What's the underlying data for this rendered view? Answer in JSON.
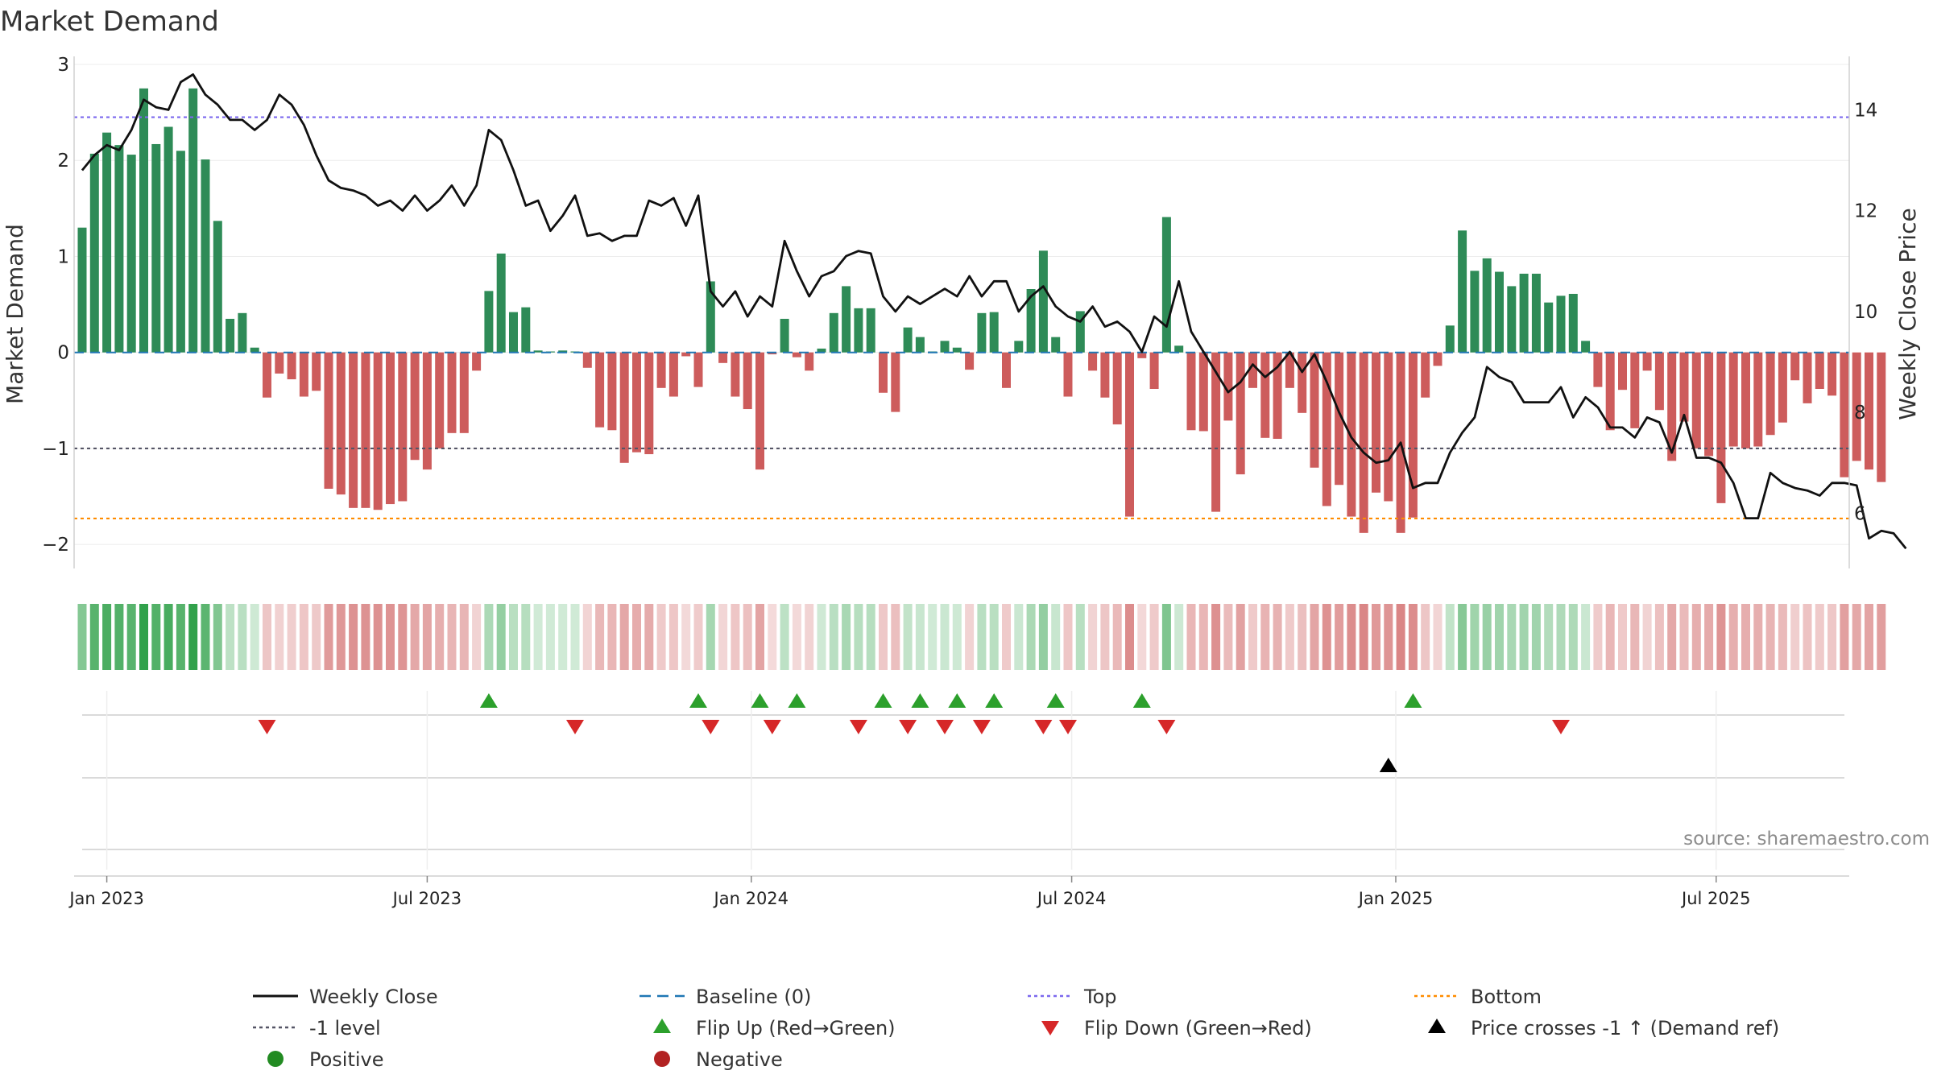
{
  "chart_data": {
    "type": "bar",
    "title": "Market Demand",
    "ylabel": "Market Demand",
    "y2label": "Weekly Close Price",
    "ylim": [
      -2.2,
      3.0
    ],
    "y2lim": [
      5.0,
      14.9
    ],
    "yticks": [
      3,
      2,
      1,
      0,
      -1,
      -2
    ],
    "yticklabels": [
      "3",
      "2",
      "1",
      "0",
      "−1",
      "−2"
    ],
    "y2ticks": [
      14,
      12,
      10,
      8,
      6
    ],
    "y2ticklabels": [
      "14",
      "12",
      "10",
      "8",
      "6"
    ],
    "xticks": [
      {
        "label": "Jan 2023",
        "week": 2
      },
      {
        "label": "Jul 2023",
        "week": 28
      },
      {
        "label": "Jan 2024",
        "week": 54.3
      },
      {
        "label": "Jul 2024",
        "week": 80.3
      },
      {
        "label": "Jan 2025",
        "week": 106.6
      },
      {
        "label": "Jul 2025",
        "week": 132.6
      }
    ],
    "reference_lines": {
      "baseline": 0,
      "top": 2.45,
      "minus_one_level": -1,
      "bottom": -1.73
    },
    "demand_values": [
      1.3,
      2.07,
      2.29,
      2.16,
      2.06,
      2.75,
      2.17,
      2.35,
      2.1,
      2.75,
      2.01,
      1.37,
      0.35,
      0.41,
      0.05,
      -0.47,
      -0.22,
      -0.28,
      -0.46,
      -0.4,
      -1.42,
      -1.48,
      -1.62,
      -1.62,
      -1.64,
      -1.58,
      -1.55,
      -1.12,
      -1.22,
      -1.0,
      -0.84,
      -0.84,
      -0.19,
      0.64,
      1.03,
      0.42,
      0.47,
      0.02,
      0.01,
      0.02,
      0.01,
      -0.16,
      -0.78,
      -0.81,
      -1.15,
      -1.04,
      -1.06,
      -0.37,
      -0.46,
      -0.04,
      -0.36,
      0.74,
      -0.11,
      -0.46,
      -0.59,
      -1.22,
      -0.02,
      0.35,
      -0.05,
      -0.19,
      0.04,
      0.41,
      0.69,
      0.46,
      0.46,
      -0.42,
      -0.62,
      0.26,
      0.16,
      0.01,
      0.12,
      0.05,
      -0.18,
      0.41,
      0.42,
      -0.37,
      0.12,
      0.66,
      1.06,
      0.16,
      -0.46,
      0.43,
      -0.19,
      -0.47,
      -0.75,
      -1.71,
      -0.06,
      -0.38,
      1.41,
      0.07,
      -0.81,
      -0.82,
      -1.66,
      -0.71,
      -1.27,
      -0.37,
      -0.89,
      -0.9,
      -0.37,
      -0.63,
      -1.2,
      -1.6,
      -1.38,
      -1.71,
      -1.88,
      -1.46,
      -1.55,
      -1.88,
      -1.72,
      -0.47,
      -0.14,
      0.28,
      1.27,
      0.85,
      0.98,
      0.84,
      0.69,
      0.82,
      0.82,
      0.52,
      0.59,
      0.61,
      0.12,
      -0.36,
      -0.81,
      -0.39,
      -0.79,
      -0.19,
      -0.6,
      -1.13,
      -0.72,
      -1.0,
      -1.08,
      -1.57,
      -0.98,
      -1.0,
      -0.98,
      -0.86,
      -0.73,
      -0.29,
      -0.53,
      -0.38,
      -0.45,
      -1.3,
      -1.13,
      -1.22,
      -1.35
    ],
    "close_values": [
      12.8,
      13.1,
      13.3,
      13.2,
      13.6,
      14.2,
      14.05,
      14.0,
      14.55,
      14.7,
      14.3,
      14.1,
      13.8,
      13.8,
      13.6,
      13.8,
      14.3,
      14.1,
      13.7,
      13.1,
      12.6,
      12.45,
      12.4,
      12.3,
      12.1,
      12.2,
      12.0,
      12.3,
      12.0,
      12.2,
      12.5,
      12.1,
      12.5,
      13.6,
      13.4,
      12.8,
      12.1,
      12.2,
      11.6,
      11.9,
      12.3,
      11.5,
      11.55,
      11.4,
      11.5,
      11.5,
      12.2,
      12.1,
      12.25,
      11.7,
      12.3,
      10.4,
      10.1,
      10.4,
      9.9,
      10.3,
      10.1,
      11.4,
      10.8,
      10.3,
      10.7,
      10.8,
      11.1,
      11.2,
      11.15,
      10.3,
      10.0,
      10.3,
      10.15,
      10.3,
      10.45,
      10.3,
      10.7,
      10.3,
      10.6,
      10.6,
      10.0,
      10.3,
      10.5,
      10.1,
      9.9,
      9.8,
      10.1,
      9.7,
      9.8,
      9.6,
      9.2,
      9.9,
      9.7,
      10.6,
      9.6,
      9.2,
      8.8,
      8.4,
      8.6,
      8.95,
      8.7,
      8.9,
      9.2,
      8.8,
      9.15,
      8.6,
      8.0,
      7.5,
      7.2,
      7.0,
      7.05,
      7.4,
      6.5,
      6.6,
      6.6,
      7.2,
      7.6,
      7.9,
      8.9,
      8.7,
      8.6,
      8.2,
      8.2,
      8.2,
      8.5,
      7.9,
      8.3,
      8.1,
      7.7,
      7.7,
      7.5,
      7.9,
      7.8,
      7.2,
      7.95,
      7.1,
      7.1,
      7.0,
      6.6,
      5.9,
      5.9,
      6.8,
      6.6,
      6.5,
      6.45,
      6.35,
      6.6,
      6.6,
      6.55,
      5.5,
      5.65,
      5.6,
      5.3
    ],
    "series": [
      {
        "name": "Weekly Close",
        "values_key": "close_values",
        "axis": "right"
      },
      {
        "name": "Market Demand",
        "values_key": "demand_values",
        "axis": "left"
      }
    ],
    "flip_up_weeks": [
      33,
      50,
      55,
      58,
      65,
      68,
      71,
      74,
      79,
      86,
      108
    ],
    "flip_down_weeks": [
      15,
      40,
      51,
      56,
      63,
      67,
      70,
      73,
      78,
      80,
      88,
      120
    ],
    "price_cross_weeks": [
      106
    ],
    "colors": {
      "positive_bar": "#2e8b57",
      "negative_bar": "#cd5c5c",
      "close_line": "#111111",
      "baseline": "#1f77b4",
      "top": "#7b68ee",
      "minus_one": "#555566",
      "bottom": "#ff8c00",
      "flip_up": "#2ca02c",
      "flip_down": "#d62728",
      "price_cross": "#000000"
    },
    "legend": {
      "placement": "bottom",
      "items": [
        {
          "label": "Weekly Close",
          "marker": "line-solid",
          "color": "#111111"
        },
        {
          "label": "Baseline (0)",
          "marker": "line-dashed",
          "color": "#1f77b4"
        },
        {
          "label": "Top",
          "marker": "line-dotted",
          "color": "#7b68ee"
        },
        {
          "label": "Bottom",
          "marker": "line-dotted",
          "color": "#ff8c00"
        },
        {
          "label": "-1 level",
          "marker": "line-dotted",
          "color": "#555566"
        },
        {
          "label": "Flip Up (Red→Green)",
          "marker": "triangle-up",
          "color": "#2ca02c"
        },
        {
          "label": "Flip Down (Green→Red)",
          "marker": "triangle-down",
          "color": "#d62728"
        },
        {
          "label": "Price crosses -1 ↑ (Demand ref)",
          "marker": "triangle-up",
          "color": "#000000"
        },
        {
          "label": "Positive",
          "marker": "dot",
          "color": "#228b22"
        },
        {
          "label": "Negative",
          "marker": "dot",
          "color": "#b22222"
        }
      ]
    },
    "source": "source: sharemaestro.com"
  }
}
